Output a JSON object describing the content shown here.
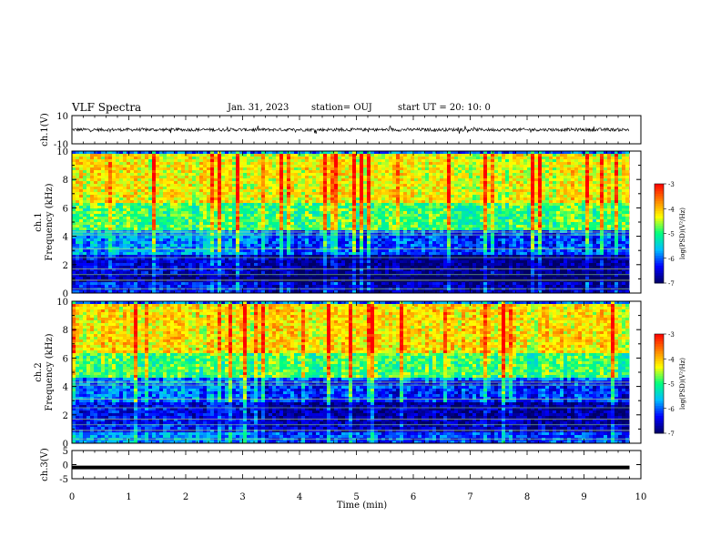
{
  "header": {
    "title": "VLF Spectra",
    "date": "Jan. 31, 2023",
    "station": "station= OUJ",
    "start": "start  UT =   20: 10: 0"
  },
  "colors": {
    "colormap": [
      "#000066",
      "#0000ff",
      "#00bfff",
      "#00ff80",
      "#ffff00",
      "#ff8000",
      "#ff0000",
      "#ffffff"
    ],
    "trace": "#000000"
  },
  "chart_data": [
    {
      "type": "line",
      "ylabel": "ch.1(V)",
      "yticks": [
        "10",
        "-10"
      ],
      "ylim": [
        -10,
        10
      ],
      "series": [
        {
          "description_only": "waveform",
          "values_range": [
            -2,
            2
          ]
        }
      ],
      "grid": false
    },
    {
      "type": "heatmap",
      "ylabel": "ch.1\nFrequency (kHz)",
      "ylabel_top": "ch.1",
      "ylabel_bottom": "Frequency (kHz)",
      "yticks": [
        "0",
        "2",
        "4",
        "6",
        "8",
        "10"
      ],
      "ylim": [
        0,
        10
      ],
      "xlim": [
        0,
        10
      ],
      "colorbar": {
        "label": "log(PSD)(V²/Hz)",
        "ticks": [
          "-3",
          "-4",
          "-5",
          "-6",
          "-7"
        ],
        "range": [
          -7,
          -3
        ]
      },
      "band_levels": [
        {
          "fmin": 0,
          "fmax": 0.8,
          "level": -6.3
        },
        {
          "fmin": 0.8,
          "fmax": 1.5,
          "level": -6.8
        },
        {
          "fmin": 1.5,
          "fmax": 2.8,
          "level": -6.5
        },
        {
          "fmin": 2.8,
          "fmax": 4.5,
          "level": -5.8
        },
        {
          "fmin": 4.5,
          "fmax": 6.5,
          "level": -4.9
        },
        {
          "fmin": 6.5,
          "fmax": 10,
          "level": -4.3
        }
      ]
    },
    {
      "type": "heatmap",
      "ylabel_top": "ch.2",
      "ylabel_bottom": "Frequency (kHz)",
      "yticks": [
        "0",
        "2",
        "4",
        "6",
        "8",
        "10"
      ],
      "ylim": [
        0,
        10
      ],
      "xlim": [
        0,
        10
      ],
      "colorbar": {
        "label": "log(PSD)(V²/Hz)",
        "ticks": [
          "-3",
          "-4",
          "-5",
          "-6",
          "-7"
        ],
        "range": [
          -7,
          -3
        ]
      },
      "band_levels": [
        {
          "fmin": 0,
          "fmax": 0.8,
          "level": -5.8
        },
        {
          "fmin": 0.8,
          "fmax": 1.5,
          "level": -6.3
        },
        {
          "fmin": 1.5,
          "fmax": 3.0,
          "level": -6.4
        },
        {
          "fmin": 3.0,
          "fmax": 4.8,
          "level": -5.9
        },
        {
          "fmin": 4.8,
          "fmax": 6.5,
          "level": -4.9
        },
        {
          "fmin": 6.5,
          "fmax": 10,
          "level": -4.2
        }
      ]
    },
    {
      "type": "line",
      "ylabel": "ch.3(V)",
      "yticks": [
        "5",
        "0",
        "-5"
      ],
      "ylim": [
        -5,
        5
      ],
      "series": [
        {
          "values": [
            -1,
            -1
          ]
        }
      ],
      "grid": false
    }
  ],
  "xaxis": {
    "label": "Time (min)",
    "ticks": [
      "0",
      "1",
      "2",
      "3",
      "4",
      "5",
      "6",
      "7",
      "8",
      "9",
      "10"
    ],
    "xlim": [
      0,
      10
    ],
    "data_end": 9.8
  }
}
